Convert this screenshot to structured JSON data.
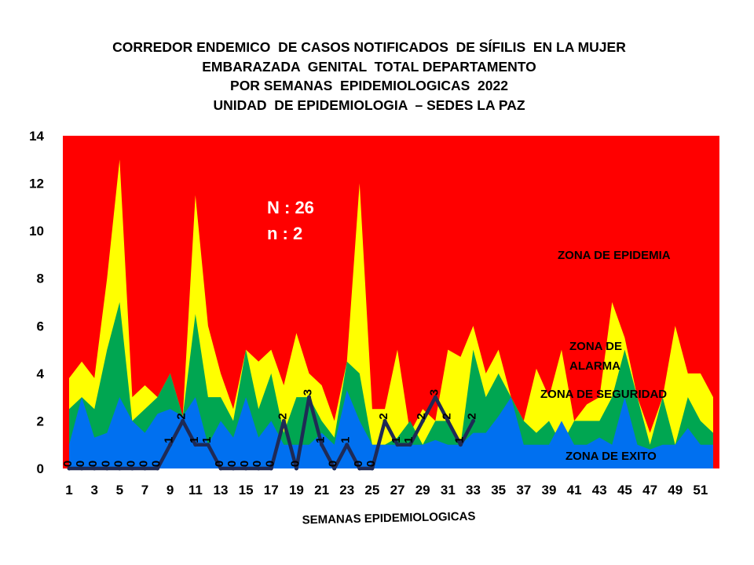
{
  "title_lines": [
    "CORREDOR ENDEMICO  DE CASOS NOTIFICADOS  DE SÍFILIS  EN LA MUJER",
    "EMBARAZADA  GENITAL  TOTAL DEPARTAMENTO",
    "POR SEMANAS  EPIDEMIOLOGICAS  2022",
    "UNIDAD  DE EPIDEMIOLOGIA  – SEDES LA PAZ"
  ],
  "chart_data": {
    "type": "area",
    "xlabel": "SEMANAS EPIDEMIOLOGICAS",
    "ylabel": "",
    "xlim": [
      1,
      52
    ],
    "ylim": [
      0,
      14
    ],
    "x": [
      1,
      2,
      3,
      4,
      5,
      6,
      7,
      8,
      9,
      10,
      11,
      12,
      13,
      14,
      15,
      16,
      17,
      18,
      19,
      20,
      21,
      22,
      23,
      24,
      25,
      26,
      27,
      28,
      29,
      30,
      31,
      32,
      33,
      34,
      35,
      36,
      37,
      38,
      39,
      40,
      41,
      42,
      43,
      44,
      45,
      46,
      47,
      48,
      49,
      50,
      51,
      52
    ],
    "x_tick_labels": [
      "1",
      "3",
      "5",
      "7",
      "9",
      "11",
      "13",
      "15",
      "17",
      "19",
      "21",
      "23",
      "25",
      "27",
      "29",
      "31",
      "33",
      "35",
      "37",
      "39",
      "41",
      "43",
      "45",
      "47",
      "49",
      "51"
    ],
    "y_tick_labels": [
      "0",
      "2",
      "4",
      "6",
      "8",
      "10",
      "12",
      "14"
    ],
    "zone_labels": {
      "epidemia": "ZONA DE EPIDEMIA",
      "alarma_line1": "ZONA DE",
      "alarma_line2": "ALARMA",
      "seguridad": "ZONA DE  SEGURIDAD",
      "exito": "ZONA DE  EXITO"
    },
    "annotations": {
      "N": "N : 26",
      "n": "n : 2"
    },
    "colors": {
      "epidemia": "#ff0000",
      "alarma": "#ffff00",
      "seguridad": "#00a651",
      "exito": "#0070f0",
      "line": "#1f2a55"
    },
    "series": [
      {
        "values": [
          1,
          3,
          1.3,
          1.5,
          3,
          2,
          1.5,
          2.3,
          2.5,
          2.2,
          3,
          1,
          2,
          1.3,
          3,
          1.3,
          2,
          1,
          1,
          1,
          1.5,
          1,
          3.3,
          2,
          1,
          1,
          1,
          1,
          1,
          1.2,
          1,
          1,
          1.5,
          1.5,
          2.2,
          3,
          1,
          1,
          1,
          2,
          1,
          1,
          1.3,
          1,
          3,
          1,
          0.8,
          1,
          1,
          1.7,
          1,
          1
        ]
      },
      {
        "values": [
          2.5,
          3,
          2.5,
          5,
          7,
          2,
          2.5,
          3,
          4,
          2.2,
          6.5,
          3,
          3,
          2,
          5,
          2.5,
          4,
          1.5,
          3,
          3,
          2,
          1.3,
          4.5,
          4,
          1,
          1,
          1.3,
          2,
          1,
          2,
          2,
          1,
          5,
          3,
          4,
          3,
          2,
          1.5,
          2,
          1,
          2,
          2,
          2,
          3,
          5,
          3,
          1,
          3,
          1,
          3,
          2,
          1.5
        ]
      },
      {
        "values": [
          3.8,
          4.5,
          3.8,
          8,
          13,
          3,
          3.5,
          3,
          4,
          2.2,
          11.5,
          6,
          4,
          2.5,
          5,
          4.5,
          5,
          3.5,
          5.7,
          4,
          3.5,
          2,
          4.5,
          12,
          2.5,
          2.5,
          5,
          1.5,
          2.5,
          2,
          5,
          4.7,
          6,
          4,
          5,
          3,
          2,
          4.2,
          3,
          5,
          2,
          2.7,
          3,
          7,
          5.5,
          3,
          1.5,
          3,
          6,
          4,
          4,
          3
        ]
      }
    ],
    "cases": {
      "x": [
        1,
        2,
        3,
        4,
        5,
        6,
        7,
        8,
        9,
        10,
        11,
        12,
        13,
        14,
        15,
        16,
        17,
        18,
        19,
        20,
        21,
        22,
        23,
        24,
        25,
        26,
        27,
        28,
        29,
        30,
        31,
        32,
        33
      ],
      "values": [
        0,
        0,
        0,
        0,
        0,
        0,
        0,
        0,
        1,
        2,
        1,
        1,
        0,
        0,
        0,
        0,
        0,
        2,
        0,
        3,
        1,
        0,
        1,
        0,
        0,
        2,
        1,
        1,
        2,
        3,
        2,
        1,
        2
      ],
      "labels": [
        "0",
        "0",
        "0",
        "0",
        "0",
        "0",
        "0",
        "0",
        "1",
        "2",
        "1",
        "1",
        "0",
        "0",
        "0",
        "0",
        "0",
        "2",
        "0",
        "3",
        "1",
        "0",
        "1",
        "0",
        "0",
        "2",
        "1",
        "1",
        "2",
        "3",
        "2",
        "1",
        "2"
      ]
    }
  }
}
